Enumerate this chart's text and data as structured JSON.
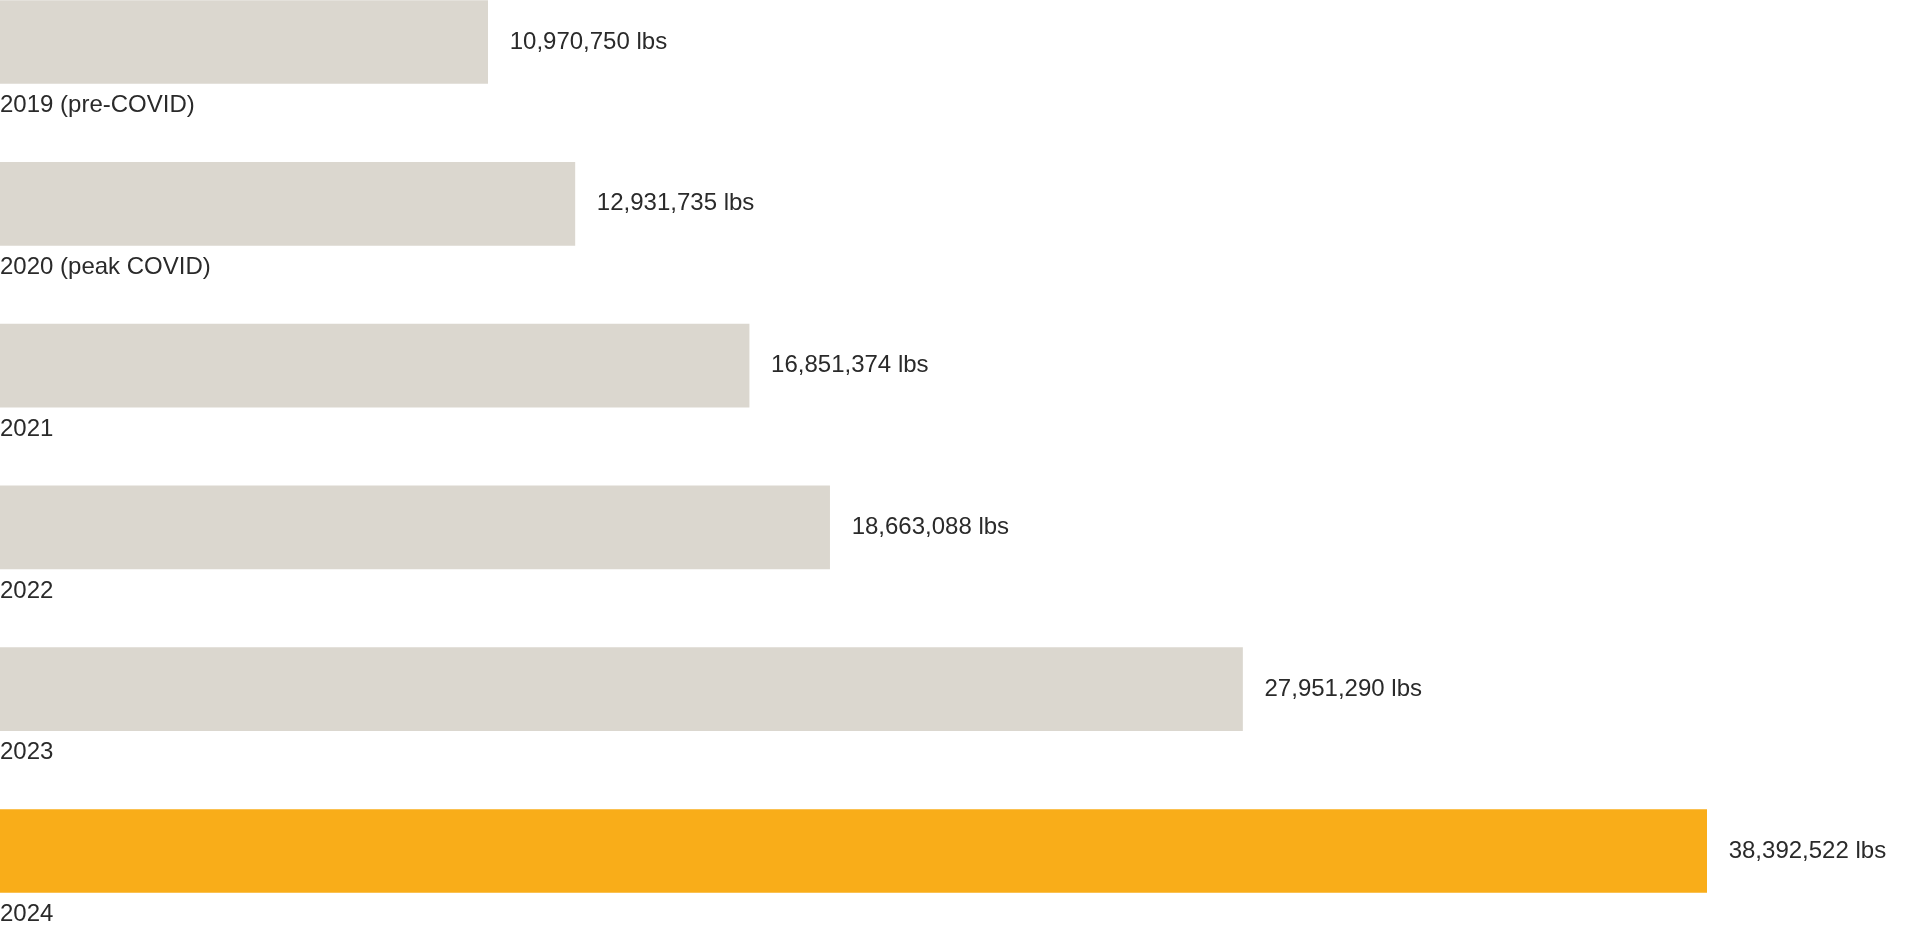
{
  "chart_data": {
    "type": "bar",
    "orientation": "horizontal",
    "categories": [
      "2019 (pre-COVID)",
      "2020 (peak COVID)",
      "2021",
      "2022",
      "2023",
      "2024"
    ],
    "values": [
      10970750,
      12931735,
      16851374,
      18663088,
      27951290,
      38392522
    ],
    "value_labels": [
      "10,970,750 lbs",
      "12,931,735 lbs",
      "16,851,374 lbs",
      "18,663,088 lbs",
      "27,951,290 lbs",
      "38,392,522 lbs"
    ],
    "colors": [
      "#dbd7cf",
      "#dbd7cf",
      "#dbd7cf",
      "#dbd7cf",
      "#dbd7cf",
      "#f9ad19"
    ],
    "legend": false,
    "tick_labels": false
  }
}
